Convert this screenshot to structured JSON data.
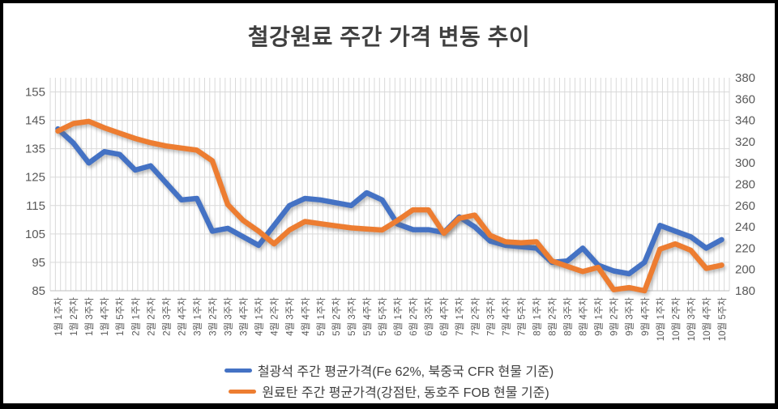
{
  "window": {
    "background": "#ffffff",
    "frame_border_color": "#000000"
  },
  "colors": {
    "title_text": "#404040",
    "axis_text": "#595959",
    "gridline": "#d9d9d9",
    "axis_line": "#bfbfbf",
    "legend_text": "#3f3f3f"
  },
  "chart_data": {
    "type": "line",
    "title": "철강원료 주간 가격 변동 추이",
    "legend_position": "bottom",
    "grid": {
      "horizontal": true,
      "vertical": true,
      "vertical_minor_per_category": 3
    },
    "categories": [
      "1월 1주차",
      "1월 2주차",
      "1월 3주차",
      "1월 4주차",
      "1월 5주차",
      "2월 1주차",
      "2월 2주차",
      "2월 3주차",
      "2월 4주차",
      "3월 1주차",
      "3월 2주차",
      "3월 3주차",
      "3월 4주차",
      "4월 1주차",
      "4월 2주차",
      "4월 3주차",
      "4월 4주차",
      "5월 1주차",
      "5월 2주차",
      "5월 3주차",
      "5월 4주차",
      "5월 5주차",
      "6월 1주차",
      "6월 2주차",
      "6월 3주차",
      "6월 4주차",
      "7월 1주차",
      "7월 2주차",
      "7월 3주차",
      "7월 4주차",
      "7월 5주차",
      "8월 1주차",
      "8월 2주차",
      "8월 3주차",
      "8월 4주차",
      "9월 1주차",
      "9월 2주차",
      "9월 3주차",
      "9월 4주차",
      "10월 1주차",
      "10월 2주차",
      "10월 3주차",
      "10월 4주차",
      "10월 5주차"
    ],
    "left_axis": {
      "min": 85,
      "max": 160,
      "tick_step": 10,
      "ticks": [
        155,
        145,
        135,
        125,
        115,
        105,
        95,
        85
      ]
    },
    "right_axis": {
      "min": 180,
      "max": 380,
      "tick_step": 20,
      "ticks": [
        380,
        360,
        340,
        320,
        300,
        280,
        260,
        240,
        220,
        200,
        180
      ]
    },
    "series": [
      {
        "name": "철광석 주간 평균가격(Fe 62%, 북중국 CFR 현물 기준)",
        "axis": "left",
        "color": "#4472c4",
        "values": [
          142,
          137,
          130,
          134,
          133,
          127.5,
          129,
          123,
          117,
          117.5,
          106,
          107,
          104,
          101,
          108,
          115,
          117.5,
          117,
          116,
          115,
          119.5,
          117,
          108.5,
          106.5,
          106.5,
          105.5,
          111,
          107.5,
          102.5,
          101,
          100.5,
          100,
          95,
          95.5,
          100,
          94,
          92,
          91,
          95,
          108,
          106,
          104,
          100,
          103
        ]
      },
      {
        "name": "원료탄 주간 평균가격(강점탄, 동호주 FOB 현물 기준)",
        "axis": "right",
        "color": "#ed7d31",
        "values": [
          330,
          337,
          339,
          333,
          328,
          323,
          319,
          316,
          314,
          312,
          302,
          261,
          246,
          236,
          224,
          237,
          245,
          243,
          241,
          239,
          238,
          237,
          246,
          256,
          256,
          234,
          248,
          251,
          232,
          226,
          225,
          226,
          208,
          203,
          198,
          202,
          181,
          183,
          180,
          219,
          224,
          218,
          201,
          204
        ]
      }
    ]
  },
  "legend": {
    "rows": [
      {
        "label": "철광석 주간 평균가격(Fe 62%, 북중국 CFR 현물 기준)",
        "color": "#4472c4"
      },
      {
        "label": "원료탄 주간 평균가격(강점탄, 동호주 FOB 현물 기준)",
        "color": "#ed7d31"
      }
    ]
  }
}
